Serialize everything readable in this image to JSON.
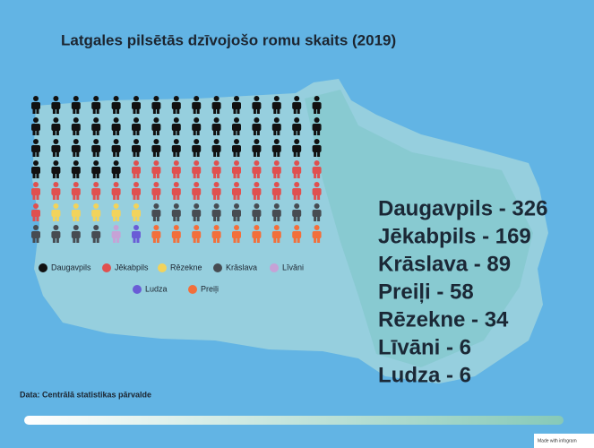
{
  "chart_data": {
    "type": "pictograph",
    "title": "Latgales pilsētās dzīvojošo romu skaits (2019)",
    "categories": [
      "Daugavpils",
      "Jēkabpils",
      "Rēzekne",
      "Krāslava",
      "Līvāni",
      "Ludza",
      "Preiļi"
    ],
    "values": [
      326,
      169,
      34,
      89,
      6,
      6,
      58
    ],
    "colors": [
      "#111111",
      "#e0504f",
      "#f2d35b",
      "#474c52",
      "#c6a2d6",
      "#6a5cd6",
      "#f26f3b"
    ],
    "totals": [
      "Daugavpils - 326",
      "Jēkabpils - 169",
      "Krāslava - 89",
      "Preiļi - 58",
      "Rēzekne - 34",
      "Līvāni - 6",
      "Ludza - 6"
    ],
    "source": "Data: Centrālā statistikas pārvalde",
    "credit": "Made with infogram"
  }
}
